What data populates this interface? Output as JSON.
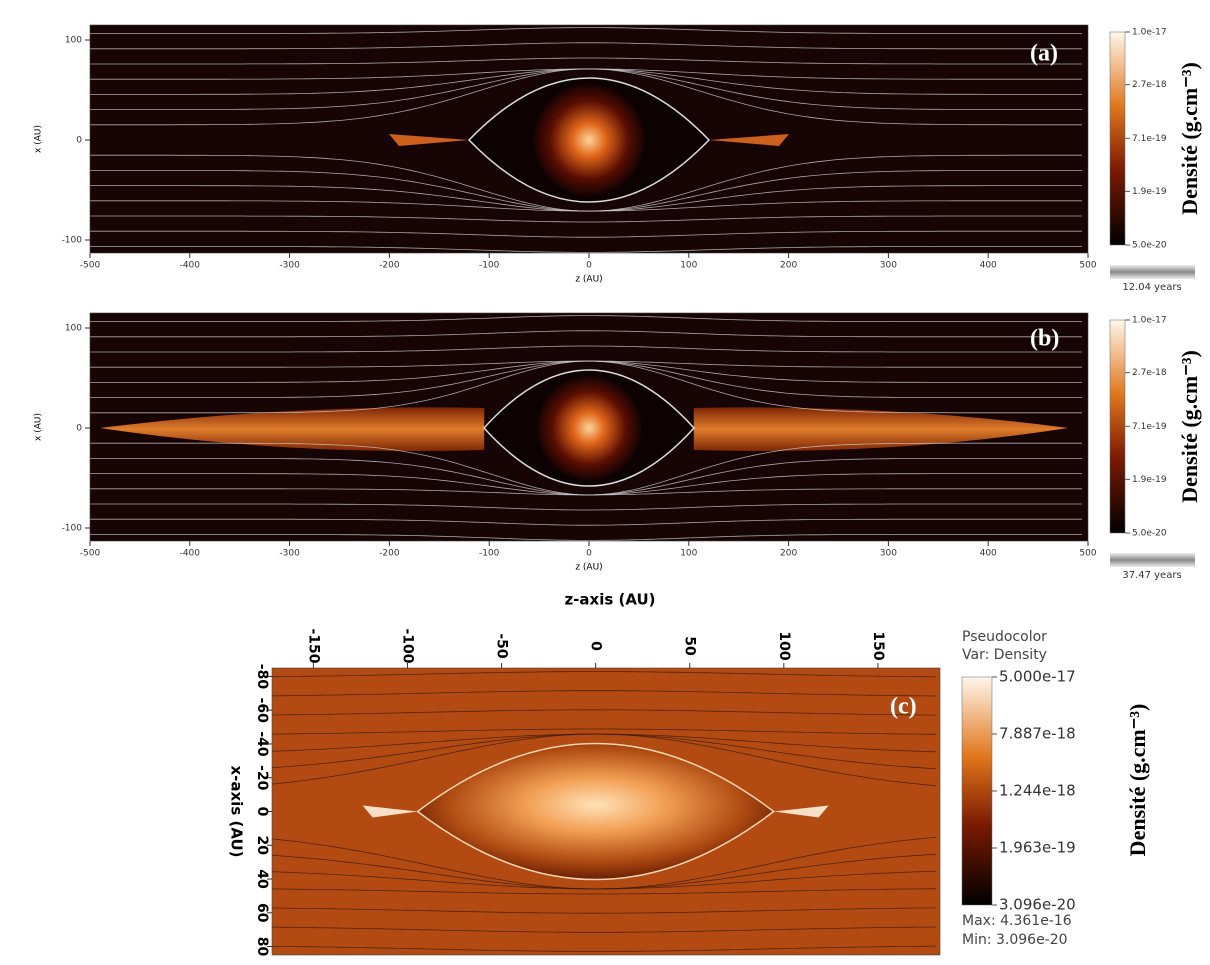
{
  "shared_xlabel": "z-axis (AU)",
  "chart_data": [
    {
      "type": "heatmap",
      "panel_label": "(a)",
      "xlabel": "z (AU)",
      "ylabel": "x (AU)",
      "xlim": [
        -500,
        500
      ],
      "xticks": [
        -500,
        -400,
        -300,
        -200,
        -100,
        0,
        100,
        200,
        300,
        400,
        500
      ],
      "ylim": [
        -113,
        115
      ],
      "yticks": [
        -100,
        0,
        100
      ],
      "xaxis_position": "bottom",
      "colorbar_title": "Densité (g.cm⁻³)",
      "color_scale": "log",
      "clim": [
        5e-20,
        1e-17
      ],
      "colorbar_ticks": [
        {
          "value": 1e-17,
          "label": "1.0e-17"
        },
        {
          "value": 2.7e-18,
          "label": "2.7e-18"
        },
        {
          "value": 7.1e-19,
          "label": "7.1e-19"
        },
        {
          "value": 1.9e-19,
          "label": "1.9e-19"
        },
        {
          "value": 5e-20,
          "label": "5.0e-20"
        }
      ],
      "time": "12.04 years"
    },
    {
      "type": "heatmap",
      "panel_label": "(b)",
      "xlabel": "z (AU)",
      "ylabel": "x (AU)",
      "xlim": [
        -500,
        500
      ],
      "xticks": [
        -500,
        -400,
        -300,
        -200,
        -100,
        0,
        100,
        200,
        300,
        400,
        500
      ],
      "ylim": [
        -113,
        115
      ],
      "yticks": [
        -100,
        0,
        100
      ],
      "xaxis_position": "bottom",
      "colorbar_title": "Densité (g.cm⁻³)",
      "color_scale": "log",
      "clim": [
        5e-20,
        1e-17
      ],
      "colorbar_ticks": [
        {
          "value": 1e-17,
          "label": "1.0e-17"
        },
        {
          "value": 2.7e-18,
          "label": "2.7e-18"
        },
        {
          "value": 7.1e-19,
          "label": "7.1e-19"
        },
        {
          "value": 1.9e-19,
          "label": "1.9e-19"
        },
        {
          "value": 5e-20,
          "label": "5.0e-20"
        }
      ],
      "time": "37.47 years"
    },
    {
      "type": "heatmap",
      "panel_label": "(c)",
      "ylabel": "x-axis (AU)",
      "xlim": [
        -172,
        183
      ],
      "xticks": [
        -150,
        -100,
        -50,
        0,
        50,
        100,
        150
      ],
      "ylim": [
        85,
        -85
      ],
      "yticks": [
        -80,
        -60,
        -40,
        -20,
        0,
        20,
        40,
        60,
        80
      ],
      "xaxis_position": "top",
      "legend_title": "Pseudocolor",
      "legend_var": "Var: Density",
      "colorbar_title": "Densité (g.cm⁻³)",
      "color_scale": "log",
      "clim": [
        3.096e-20,
        5e-17
      ],
      "colorbar_ticks": [
        {
          "value": 5e-17,
          "label": "5.000e-17"
        },
        {
          "value": 7.887e-18,
          "label": "7.887e-18"
        },
        {
          "value": 1.244e-18,
          "label": "1.244e-18"
        },
        {
          "value": 1.963e-19,
          "label": "1.963e-19"
        },
        {
          "value": 3.096e-20,
          "label": "3.096e-20"
        }
      ],
      "max_text": "Max:  4.361e-16",
      "min_text": "Min:  3.096e-20"
    }
  ]
}
